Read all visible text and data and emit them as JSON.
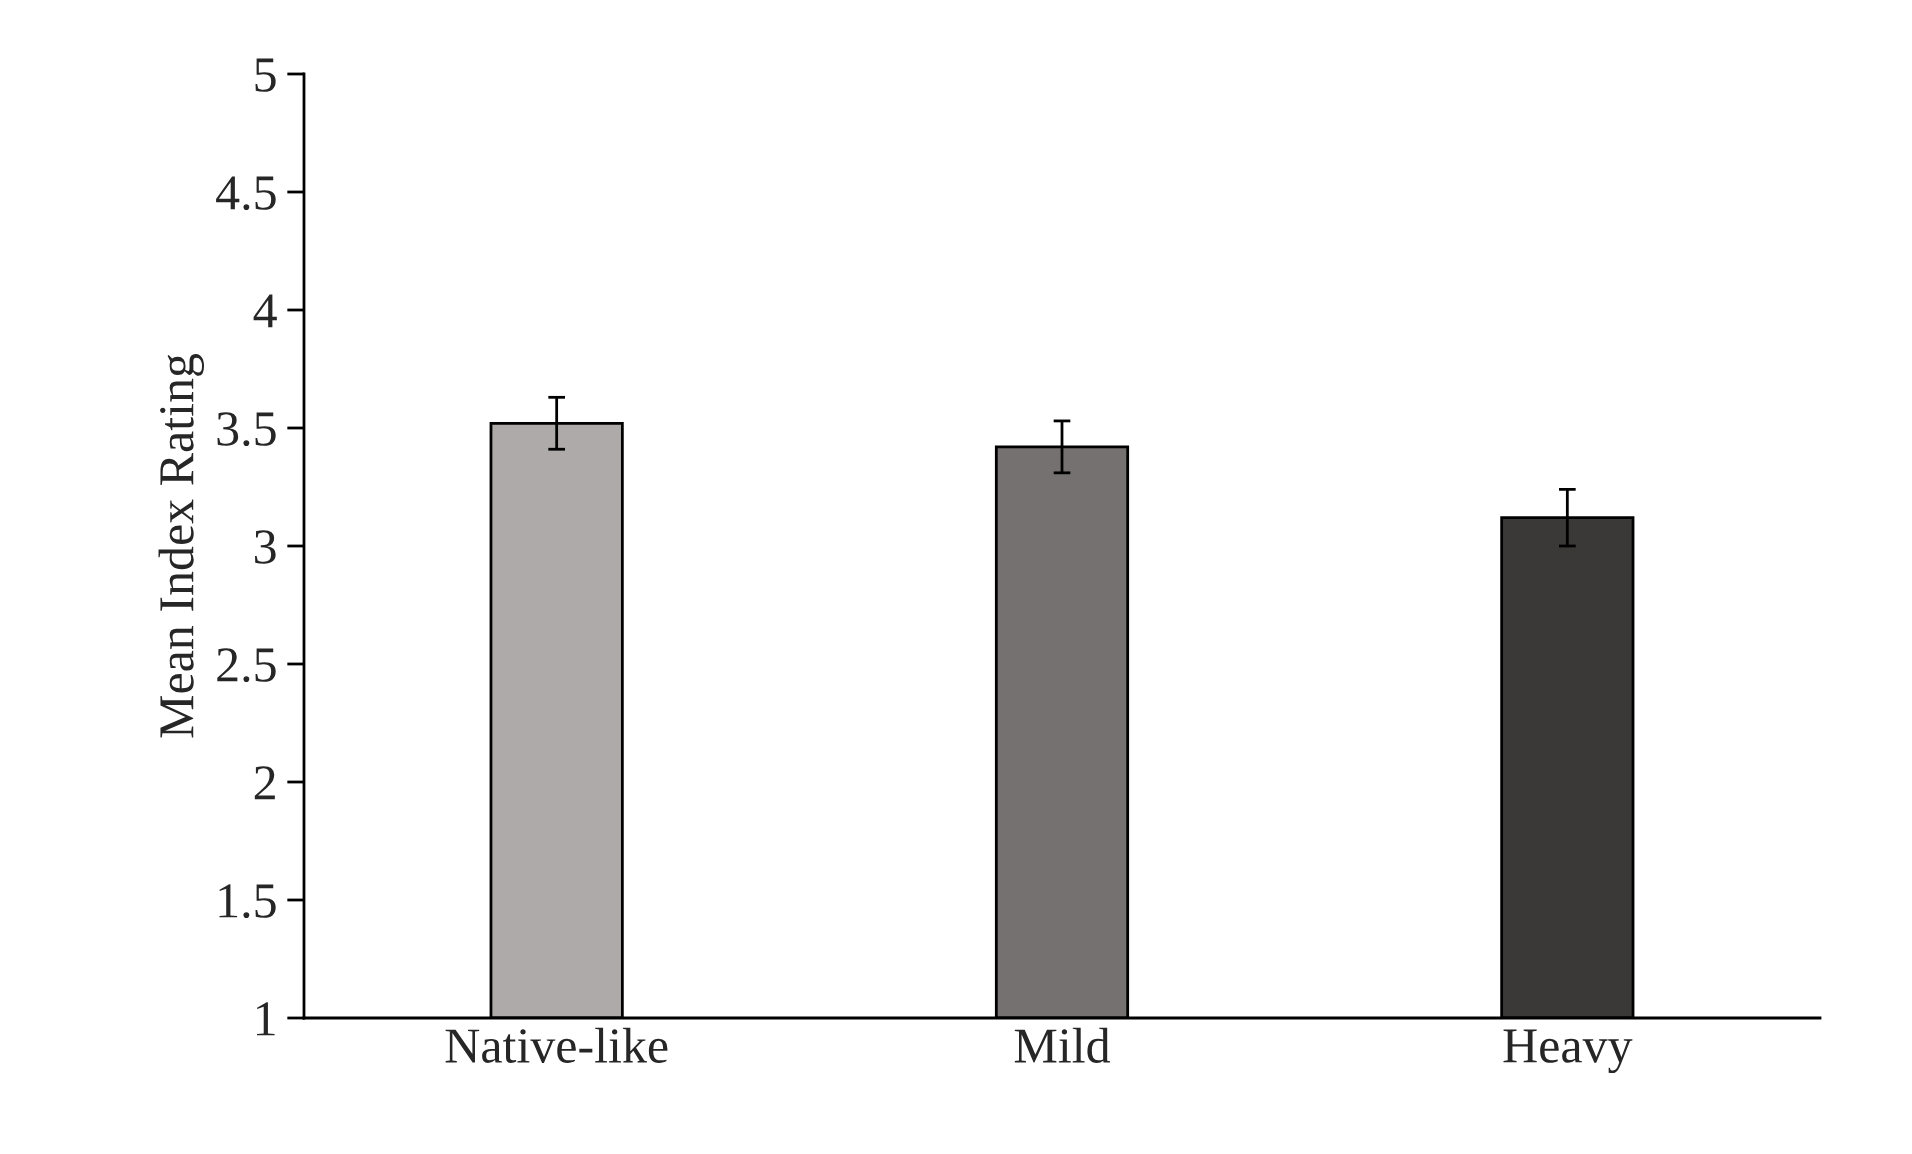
{
  "chart_data": {
    "type": "bar",
    "ylabel": "Mean Index Rating",
    "categories": [
      "Native-like",
      "Mild",
      "Heavy"
    ],
    "values": [
      3.52,
      3.42,
      3.12
    ],
    "errors": [
      0.11,
      0.11,
      0.12
    ],
    "colors": [
      "#aeaaaa",
      "#767171",
      "#3b3838"
    ],
    "ylim": [
      1,
      5
    ],
    "yticks": [
      1,
      1.5,
      2,
      2.5,
      3,
      3.5,
      4,
      4.5,
      5
    ],
    "grid": false,
    "legend": false
  }
}
